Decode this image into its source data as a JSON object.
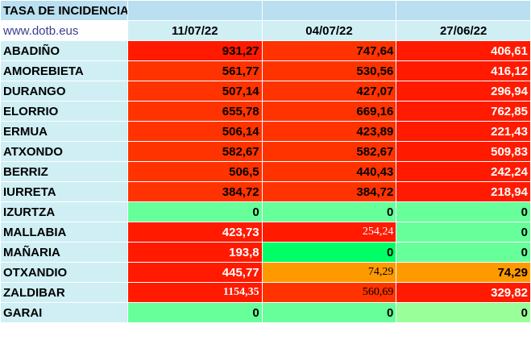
{
  "title": "TASA DE INCIDENCIA",
  "site": "www.dotb.eus",
  "dates": [
    "11/07/22",
    "04/07/22",
    "27/06/22"
  ],
  "colors": {
    "red": "#ff1a00",
    "red_orange": "#ff3300",
    "orange": "#ff9900",
    "light_green": "#99ff99",
    "mint_green": "#66ff99",
    "bright_green": "#00ff66"
  },
  "rows": [
    {
      "name": "ABADIÑO",
      "values": [
        "931,27",
        "747,64",
        "406,61"
      ]
    },
    {
      "name": "AMOREBIETA",
      "values": [
        "561,77",
        "530,56",
        "416,12"
      ]
    },
    {
      "name": "DURANGO",
      "values": [
        "507,14",
        "427,07",
        "296,94"
      ]
    },
    {
      "name": "ELORRIO",
      "values": [
        "655,78",
        "669,16",
        "762,85"
      ]
    },
    {
      "name": "ERMUA",
      "values": [
        "506,14",
        "423,89",
        "221,43"
      ]
    },
    {
      "name": "ATXONDO",
      "values": [
        "582,67",
        "582,67",
        "509,83"
      ]
    },
    {
      "name": "BERRIZ",
      "values": [
        "506,5",
        "440,43",
        "242,24"
      ]
    },
    {
      "name": "IURRETA",
      "values": [
        "384,72",
        "384,72",
        "218,94"
      ]
    },
    {
      "name": "IZURTZA",
      "values": [
        "0",
        "0",
        "0"
      ]
    },
    {
      "name": "MALLABIA",
      "values": [
        "423,73",
        "254,24",
        "0"
      ]
    },
    {
      "name": "MAÑARIA",
      "values": [
        "193,8",
        "0",
        "0"
      ]
    },
    {
      "name": "OTXANDIO",
      "values": [
        "445,77",
        "74,29",
        "74,29"
      ]
    },
    {
      "name": "ZALDIBAR",
      "values": [
        "1154,35",
        "560,69",
        "329,82"
      ]
    },
    {
      "name": "GARAI",
      "values": [
        "0",
        "0",
        "0"
      ]
    }
  ]
}
